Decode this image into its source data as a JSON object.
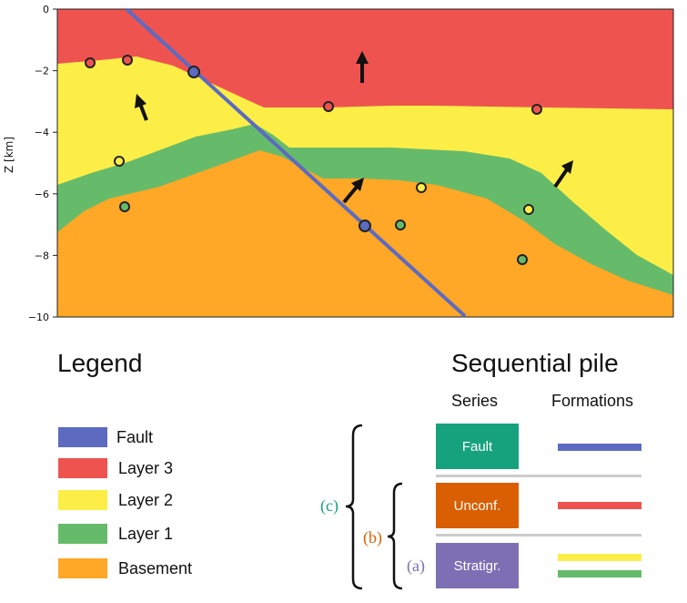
{
  "section": {
    "y_axis_label": "Z [km]",
    "y_ticks": [
      "0",
      "−2",
      "−4",
      "−6",
      "−8",
      "−10"
    ],
    "colors": {
      "layer3": "#EF5350",
      "layer2": "#FCEE47",
      "layer1": "#66BB6A",
      "basement": "#FFA726",
      "fault": "#5C6BC0",
      "border": "#222222"
    }
  },
  "legend": {
    "title": "Legend",
    "items": [
      {
        "label": "Fault",
        "color": "#5C6BC0"
      },
      {
        "label": "Layer 3",
        "color": "#EF5350"
      },
      {
        "label": "Layer 2",
        "color": "#FCEE47"
      },
      {
        "label": "Layer 1",
        "color": "#66BB6A"
      },
      {
        "label": "Basement",
        "color": "#FFA726"
      }
    ]
  },
  "pile": {
    "title": "Sequential pile",
    "series_header": "Series",
    "formations_header": "Formations",
    "series": [
      {
        "label": "Fault",
        "color": "#16A27C"
      },
      {
        "label": "Unconf.",
        "color": "#D95F02"
      },
      {
        "label": "Stratigr.",
        "color": "#7E6FB4"
      }
    ],
    "brace_labels": [
      {
        "label": "(c)",
        "color": "#16A27C"
      },
      {
        "label": "(b)",
        "color": "#D95F02"
      },
      {
        "label": "(a)",
        "color": "#7E6FB4"
      }
    ]
  }
}
